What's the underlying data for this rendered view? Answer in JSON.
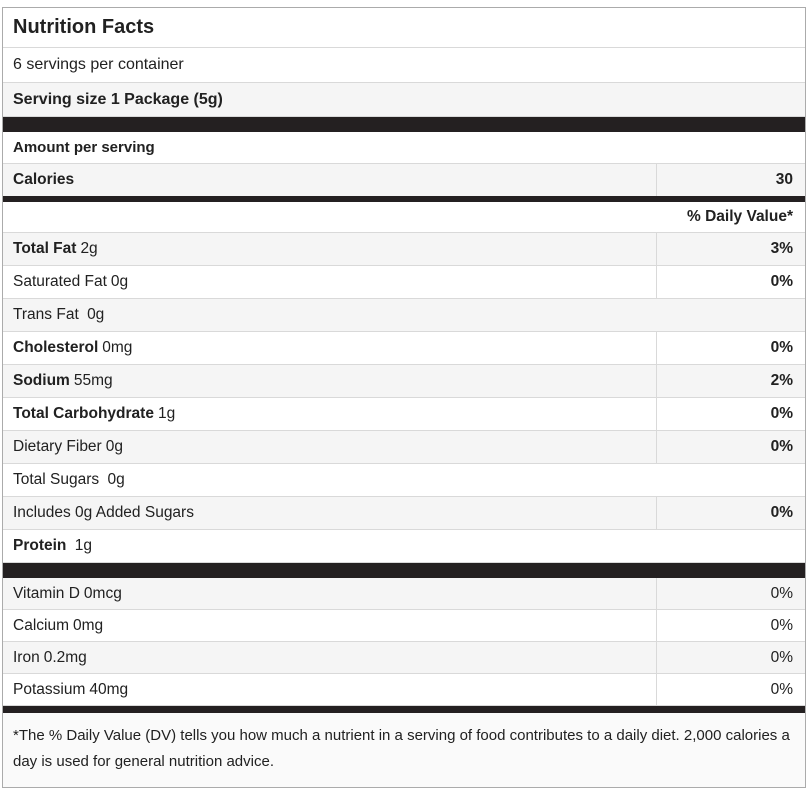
{
  "header": {
    "title": "Nutrition Facts",
    "servings_per_container": "6 servings per container",
    "serving_size": "Serving size 1 Package (5g)"
  },
  "calories_section": {
    "amount_per_serving_label": "Amount per serving",
    "calories_label": "Calories",
    "calories_value": "30"
  },
  "daily_value_header": "% Daily Value*",
  "nutrients": [
    {
      "name": "Total Fat",
      "amount": "2g",
      "daily_value": "3%"
    },
    {
      "name": "Saturated Fat",
      "amount": "0g",
      "daily_value": "0%"
    },
    {
      "name": "Trans Fat",
      "amount": "0g",
      "daily_value": ""
    },
    {
      "name": "Cholesterol",
      "amount": "0mg",
      "daily_value": "0%"
    },
    {
      "name": "Sodium",
      "amount": "55mg",
      "daily_value": "2%"
    },
    {
      "name": "Total Carbohydrate",
      "amount": "1g",
      "daily_value": "0%"
    },
    {
      "name": "Dietary Fiber",
      "amount": "0g",
      "daily_value": "0%"
    },
    {
      "name": "Total Sugars",
      "amount": "0g",
      "daily_value": ""
    },
    {
      "name": "Includes 0g Added Sugars",
      "amount": "",
      "daily_value": "0%"
    },
    {
      "name": "Protein",
      "amount": "1g",
      "daily_value": ""
    }
  ],
  "micronutrients": [
    {
      "name": "Vitamin D",
      "amount": "0mcg",
      "daily_value": "0%"
    },
    {
      "name": "Calcium",
      "amount": "0mg",
      "daily_value": "0%"
    },
    {
      "name": "Iron",
      "amount": "0.2mg",
      "daily_value": "0%"
    },
    {
      "name": "Potassium",
      "amount": "40mg",
      "daily_value": "0%"
    }
  ],
  "footnote": "*The % Daily Value (DV) tells you how much a nutrient in a serving of food contributes to a daily diet. 2,000 calories a day is used for general nutrition advice.",
  "colors": {
    "bar": "#242021",
    "shaded_row": "#f5f5f5",
    "border": "#d9d9d9",
    "text": "#212121",
    "footer_bg": "#fafafa"
  }
}
